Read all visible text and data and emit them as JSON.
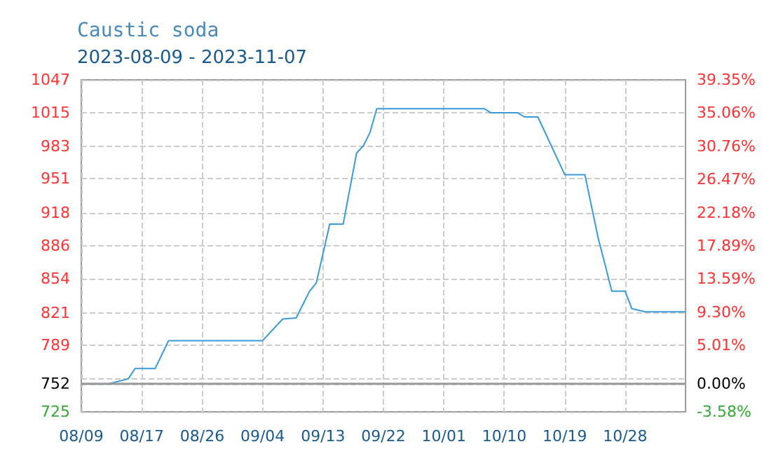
{
  "chart_data": {
    "type": "line",
    "title": "Caustic soda",
    "subtitle": "2023-08-09 - 2023-11-07",
    "x": [
      "2023-08-09",
      "2023-08-13",
      "2023-08-16",
      "2023-08-17",
      "2023-08-20",
      "2023-08-22",
      "2023-09-05",
      "2023-09-08",
      "2023-09-10",
      "2023-09-12",
      "2023-09-13",
      "2023-09-15",
      "2023-09-17",
      "2023-09-19",
      "2023-09-20",
      "2023-09-21",
      "2023-09-22",
      "2023-10-08",
      "2023-10-09",
      "2023-10-13",
      "2023-10-14",
      "2023-10-16",
      "2023-10-20",
      "2023-10-23",
      "2023-10-25",
      "2023-10-26",
      "2023-10-27",
      "2023-10-29",
      "2023-10-30",
      "2023-11-01",
      "2023-11-07"
    ],
    "series": [
      {
        "color": "#3b9ad9",
        "values": [
          752,
          752,
          757,
          767,
          767,
          794,
          794,
          815,
          816,
          842,
          850,
          907,
          907,
          976,
          983,
          996,
          1019,
          1019,
          1015,
          1015,
          1011,
          1011,
          955,
          955,
          893,
          868,
          842,
          842,
          825,
          822,
          822
        ]
      }
    ],
    "xlim": [
      "2023-08-09",
      "2023-11-07"
    ],
    "xticks": [
      {
        "value": "2023-08-09",
        "label": "08/09"
      },
      {
        "value": "2023-08-18",
        "label": "08/17"
      },
      {
        "value": "2023-08-27",
        "label": "08/26"
      },
      {
        "value": "2023-09-05",
        "label": "09/04"
      },
      {
        "value": "2023-09-14",
        "label": "09/13"
      },
      {
        "value": "2023-09-23",
        "label": "09/22"
      },
      {
        "value": "2023-10-02",
        "label": "10/01"
      },
      {
        "value": "2023-10-11",
        "label": "10/10"
      },
      {
        "value": "2023-10-20",
        "label": "10/19"
      },
      {
        "value": "2023-10-29",
        "label": "10/28"
      }
    ],
    "ylim": [
      725,
      1047
    ],
    "yticks": [
      1047,
      {
        "value": 1014.8,
        "label": "1015"
      },
      {
        "value": 982.6,
        "label": "983"
      },
      {
        "value": 951,
        "label": "951"
      },
      {
        "value": 918.2,
        "label": "918"
      },
      886,
      {
        "value": 853.8,
        "label": "854"
      },
      {
        "value": 821,
        "label": "821"
      },
      {
        "value": 789.4,
        "label": "789"
      },
      {
        "value": 757.2,
        "label": null
      },
      752,
      725
    ],
    "y2lim": [
      -3.58,
      39.35
    ],
    "y2ticks": [
      {
        "value": 39.35,
        "label": "39.35%"
      },
      {
        "value": 35.06,
        "label": "35.06%"
      },
      {
        "value": 30.76,
        "label": "30.76%"
      },
      {
        "value": 26.47,
        "label": "26.47%"
      },
      {
        "value": 22.18,
        "label": "22.18%"
      },
      {
        "value": 17.89,
        "label": "17.89%"
      },
      {
        "value": 13.59,
        "label": "13.59%"
      },
      {
        "value": 9.3,
        "label": "9.30%"
      },
      {
        "value": 5.01,
        "label": "5.01%"
      },
      {
        "value": 0,
        "label": "0.00%"
      },
      {
        "value": -3.58,
        "label": "-3.58%"
      }
    ],
    "ref_lines": [
      {
        "axis": "y",
        "value": 752,
        "color": "#999999"
      }
    ],
    "grid": true,
    "marker": "none",
    "line_style": "solid"
  }
}
